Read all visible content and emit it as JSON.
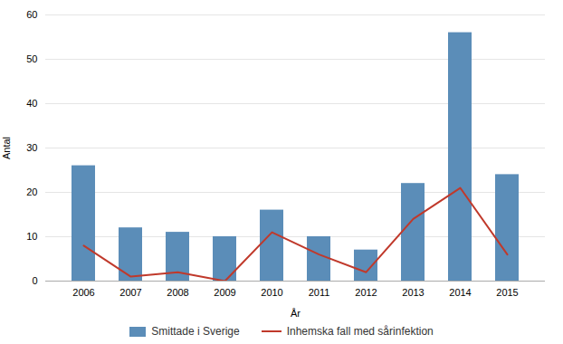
{
  "chart_data": {
    "type": "bar",
    "categories": [
      "2006",
      "2007",
      "2008",
      "2009",
      "2010",
      "2011",
      "2012",
      "2013",
      "2014",
      "2015"
    ],
    "series": [
      {
        "name": "Smittade i Sverige",
        "type": "bar",
        "color": "#5b8db8",
        "values": [
          26,
          12,
          11,
          10,
          16,
          10,
          7,
          22,
          56,
          24
        ]
      },
      {
        "name": "Inhemska fall med sårinfektion",
        "type": "line",
        "color": "#c0392b",
        "values": [
          8,
          1,
          2,
          0,
          11,
          6,
          2,
          14,
          21,
          6
        ]
      }
    ],
    "xlabel": "År",
    "ylabel": "Antal",
    "ylim": [
      0,
      60
    ],
    "yticks": [
      0,
      10,
      20,
      30,
      40,
      50,
      60
    ],
    "grid": true,
    "legend": "bottom"
  }
}
